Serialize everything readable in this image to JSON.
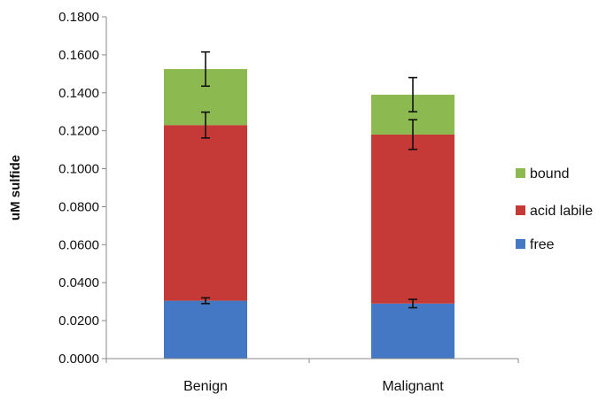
{
  "chart_data": {
    "type": "bar",
    "stacked": true,
    "title": "",
    "xlabel": "",
    "ylabel": "uM sulfide",
    "ylim": [
      0,
      0.18
    ],
    "yticks": [
      "0.0000",
      "0.0200",
      "0.0400",
      "0.0600",
      "0.0800",
      "0.1000",
      "0.1200",
      "0.1400",
      "0.1600",
      "0.1800"
    ],
    "categories": [
      "Benign",
      "Malignant"
    ],
    "series": [
      {
        "name": "free",
        "color": "#4477c4",
        "values": [
          0.0305,
          0.029
        ],
        "error_centers": [
          0.0305,
          0.029
        ],
        "errors": [
          0.0015,
          0.0022
        ]
      },
      {
        "name": "acid labile",
        "color": "#c53a36",
        "values": [
          0.0925,
          0.089
        ],
        "error_centers": [
          0.123,
          0.118
        ],
        "errors": [
          0.0068,
          0.0078
        ]
      },
      {
        "name": "bound",
        "color": "#8db951",
        "values": [
          0.0295,
          0.021
        ],
        "error_centers": [
          0.1525,
          0.139
        ],
        "errors": [
          0.009,
          0.009
        ]
      }
    ],
    "legend_position": "right",
    "legend_order": [
      "bound",
      "acid labile",
      "free"
    ],
    "grid": false
  }
}
